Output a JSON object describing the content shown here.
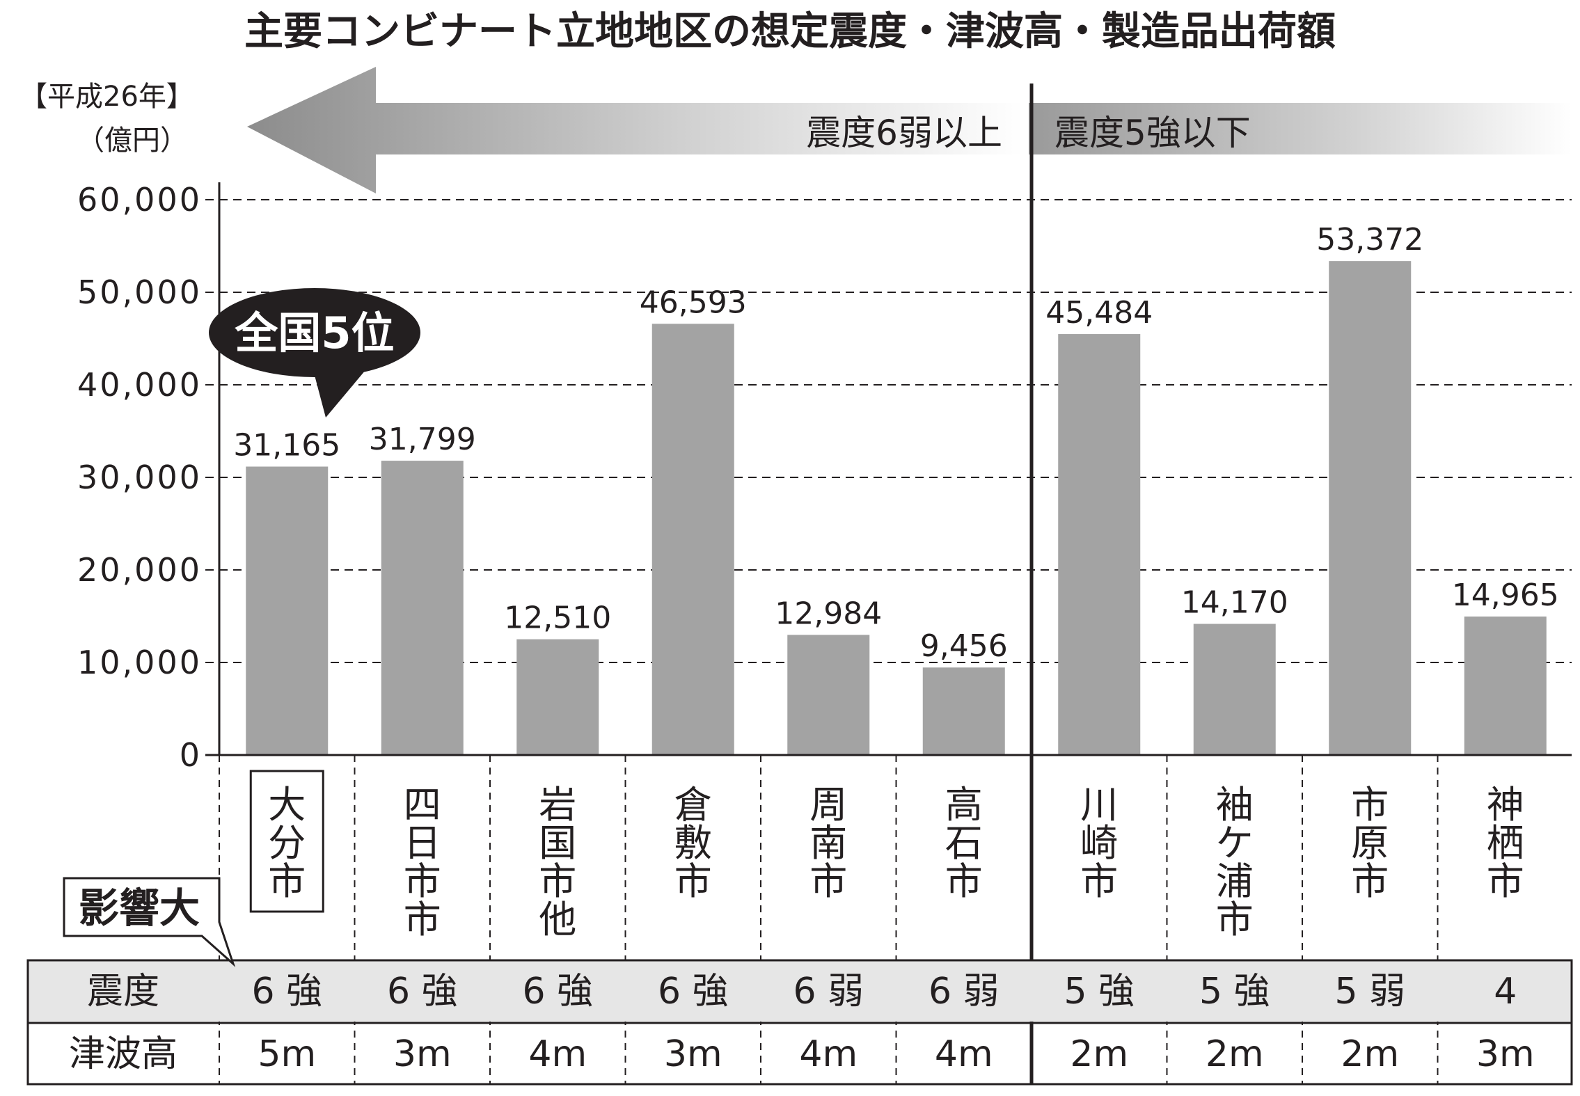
{
  "chart_data": {
    "type": "bar",
    "title": "主要コンビナート立地地区の想定震度・津波高・製造品出荷額",
    "unit_year": "【平成26年】",
    "unit": "（億円）",
    "ylim": [
      0,
      60000
    ],
    "y_ticks": [
      {
        "value": 0,
        "label": "0"
      },
      {
        "value": 10000,
        "label": "10,000"
      },
      {
        "value": 20000,
        "label": "20,000"
      },
      {
        "value": 30000,
        "label": "30,000"
      },
      {
        "value": 40000,
        "label": "40,000"
      },
      {
        "value": 50000,
        "label": "50,000"
      },
      {
        "value": 60000,
        "label": "60,000"
      }
    ],
    "grid": "horizontal dashed",
    "categories": [
      "大分市",
      "四日市市",
      "岩国市他",
      "倉敷市",
      "周南市",
      "高石市",
      "川崎市",
      "袖ケ浦市",
      "市原市",
      "神栖市"
    ],
    "values": [
      31165,
      31799,
      12510,
      46593,
      12984,
      9456,
      45484,
      14170,
      53372,
      14965
    ],
    "value_labels": [
      "31,165",
      "31,799",
      "12,510",
      "46,593",
      "12,984",
      "9,456",
      "45,484",
      "14,170",
      "53,372",
      "14,965"
    ],
    "bar_color": "#a3a3a3",
    "groups": [
      {
        "label": "震度6弱以上",
        "from": 0,
        "to": 5
      },
      {
        "label": "震度5強以下",
        "from": 6,
        "to": 9
      }
    ],
    "callout": {
      "label": "全国5位",
      "category": "大分市"
    },
    "impact_label": "影響大",
    "table": {
      "rows": [
        {
          "header": "震度",
          "values": [
            "6 強",
            "6 強",
            "6 強",
            "6 強",
            "6 弱",
            "6 弱",
            "5 強",
            "5 強",
            "5 弱",
            "4"
          ]
        },
        {
          "header": "津波高",
          "values": [
            "5m",
            "3m",
            "4m",
            "3m",
            "4m",
            "4m",
            "2m",
            "2m",
            "2m",
            "3m"
          ]
        }
      ],
      "header_row_color": "#e6e6e6"
    }
  }
}
